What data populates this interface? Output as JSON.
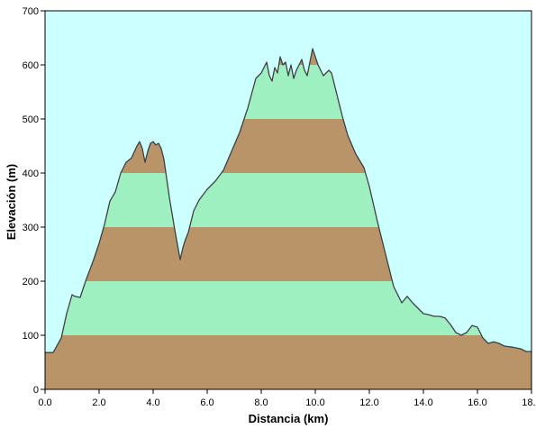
{
  "chart_data": {
    "type": "area",
    "xlabel": "Distancia  (km)",
    "ylabel": "Elevación (m)",
    "xlim": [
      0,
      18
    ],
    "ylim": [
      0,
      700
    ],
    "xticks": [
      "0.0",
      "2.0",
      "4.0",
      "6.0",
      "8.0",
      "10.0",
      "12.0",
      "14.0",
      "16.0",
      "18.0"
    ],
    "xtick_values": [
      0,
      2,
      4,
      6,
      8,
      10,
      12,
      14,
      16,
      18
    ],
    "yticks": [
      "0",
      "100",
      "200",
      "300",
      "400",
      "500",
      "600",
      "700"
    ],
    "ytick_values": [
      0,
      100,
      200,
      300,
      400,
      500,
      600,
      700
    ],
    "band_size": 100,
    "colors": {
      "background": "#ccffff",
      "band_brown": "#b89468",
      "band_green": "#9ff0c0",
      "profile_line": "#404040",
      "axis": "#000000"
    },
    "series": [
      {
        "x": [
          0,
          0.3,
          0.6,
          0.8,
          1.0,
          1.1,
          1.3,
          1.5,
          1.8,
          2.0,
          2.2,
          2.4,
          2.6,
          2.8,
          3.0,
          3.2,
          3.4,
          3.5,
          3.6,
          3.7,
          3.8,
          3.9,
          4.0,
          4.1,
          4.2,
          4.3,
          4.4,
          4.6,
          4.8,
          5.0,
          5.1,
          5.2,
          5.3,
          5.5,
          5.7,
          6.0,
          6.3,
          6.6,
          6.9,
          7.2,
          7.5,
          7.8,
          8.0,
          8.2,
          8.3,
          8.4,
          8.5,
          8.6,
          8.7,
          8.8,
          8.9,
          9.0,
          9.1,
          9.2,
          9.3,
          9.4,
          9.5,
          9.6,
          9.7,
          9.8,
          9.9,
          10.0,
          10.1,
          10.2,
          10.3,
          10.4,
          10.5,
          10.6,
          10.7,
          10.8,
          10.9,
          11.0,
          11.2,
          11.5,
          11.8,
          12.0,
          12.3,
          12.6,
          12.9,
          13.2,
          13.4,
          13.6,
          13.8,
          14.0,
          14.2,
          14.4,
          14.6,
          14.8,
          15.0,
          15.2,
          15.4,
          15.6,
          15.8,
          16.0,
          16.2,
          16.4,
          16.6,
          16.8,
          17.0,
          17.3,
          17.6,
          17.8,
          18.0
        ],
        "y": [
          68,
          68,
          95,
          140,
          175,
          172,
          170,
          200,
          240,
          270,
          305,
          348,
          365,
          400,
          420,
          428,
          450,
          458,
          445,
          420,
          440,
          455,
          458,
          452,
          455,
          445,
          425,
          355,
          295,
          240,
          262,
          278,
          290,
          330,
          350,
          370,
          385,
          405,
          440,
          475,
          520,
          575,
          585,
          605,
          580,
          570,
          595,
          585,
          615,
          600,
          605,
          580,
          600,
          575,
          590,
          600,
          610,
          590,
          580,
          605,
          630,
          615,
          600,
          590,
          580,
          585,
          590,
          585,
          565,
          545,
          525,
          505,
          470,
          435,
          410,
          375,
          310,
          250,
          190,
          160,
          172,
          160,
          150,
          140,
          138,
          135,
          135,
          132,
          120,
          105,
          100,
          105,
          118,
          115,
          95,
          85,
          88,
          85,
          80,
          78,
          75,
          70,
          70
        ]
      }
    ]
  }
}
